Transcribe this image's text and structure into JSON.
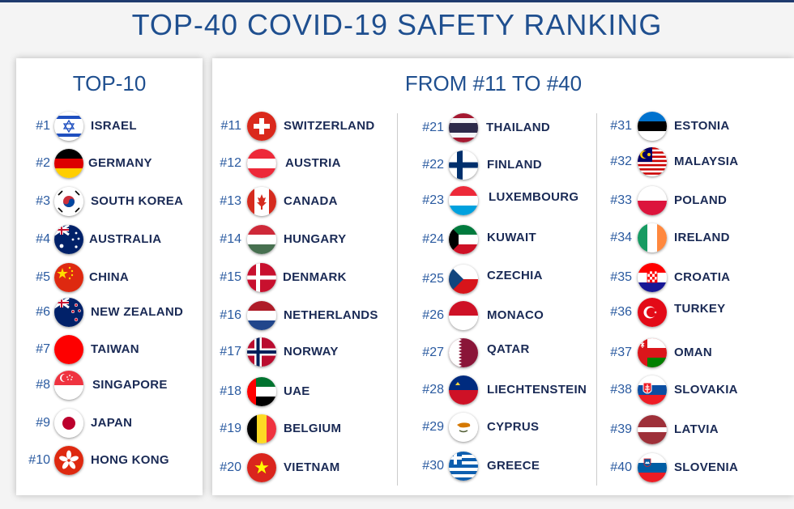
{
  "title": "TOP-40 COVID-19 SAFETY RANKING",
  "top10": {
    "heading": "TOP-10",
    "items": [
      {
        "rank": "#1",
        "name": "ISRAEL"
      },
      {
        "rank": "#2",
        "name": "GERMANY"
      },
      {
        "rank": "#3",
        "name": "SOUTH KOREA"
      },
      {
        "rank": "#4",
        "name": "AUSTRALIA"
      },
      {
        "rank": "#5",
        "name": "CHINA"
      },
      {
        "rank": "#6",
        "name": "NEW ZEALAND"
      },
      {
        "rank": "#7",
        "name": "TAIWAN"
      },
      {
        "rank": "#8",
        "name": "SINGAPORE"
      },
      {
        "rank": "#9",
        "name": "JAPAN"
      },
      {
        "rank": "#10",
        "name": "HONG KONG"
      }
    ]
  },
  "rest": {
    "heading": "FROM #11 TO #40",
    "col1": [
      {
        "rank": "#11",
        "name": "SWITZERLAND"
      },
      {
        "rank": "#12",
        "name": "AUSTRIA"
      },
      {
        "rank": "#13",
        "name": "CANADA"
      },
      {
        "rank": "#14",
        "name": "HUNGARY"
      },
      {
        "rank": "#15",
        "name": "DENMARK"
      },
      {
        "rank": "#16",
        "name": "NETHERLANDS"
      },
      {
        "rank": "#17",
        "name": "NORWAY"
      },
      {
        "rank": "#18",
        "name": "UAE"
      },
      {
        "rank": "#19",
        "name": "BELGIUM"
      },
      {
        "rank": "#20",
        "name": "VIETNAM"
      }
    ],
    "col2": [
      {
        "rank": "#21",
        "name": "THAILAND"
      },
      {
        "rank": "#22",
        "name": "FINLAND"
      },
      {
        "rank": "#23",
        "name": "LUXEMBOURG"
      },
      {
        "rank": "#24",
        "name": "KUWAIT"
      },
      {
        "rank": "#25",
        "name": "CZECHIA"
      },
      {
        "rank": "#26",
        "name": "MONACO"
      },
      {
        "rank": "#27",
        "name": "QATAR"
      },
      {
        "rank": "#28",
        "name": "LIECHTENSTEIN"
      },
      {
        "rank": "#29",
        "name": "CYPRUS"
      },
      {
        "rank": "#30",
        "name": "GREECE"
      }
    ],
    "col3": [
      {
        "rank": "#31",
        "name": "ESTONIA"
      },
      {
        "rank": "#32",
        "name": "MALAYSIA"
      },
      {
        "rank": "#33",
        "name": "POLAND"
      },
      {
        "rank": "#34",
        "name": "IRELAND"
      },
      {
        "rank": "#35",
        "name": "CROATIA"
      },
      {
        "rank": "#36",
        "name": "TURKEY"
      },
      {
        "rank": "#37",
        "name": "OMAN"
      },
      {
        "rank": "#38",
        "name": "SLOVAKIA"
      },
      {
        "rank": "#39",
        "name": "LATVIA"
      },
      {
        "rank": "#40",
        "name": "SLOVENIA"
      }
    ]
  },
  "colors": {
    "title": "#1f4f8f",
    "rank": "#2a5aa0",
    "country": "#1a2a55"
  }
}
